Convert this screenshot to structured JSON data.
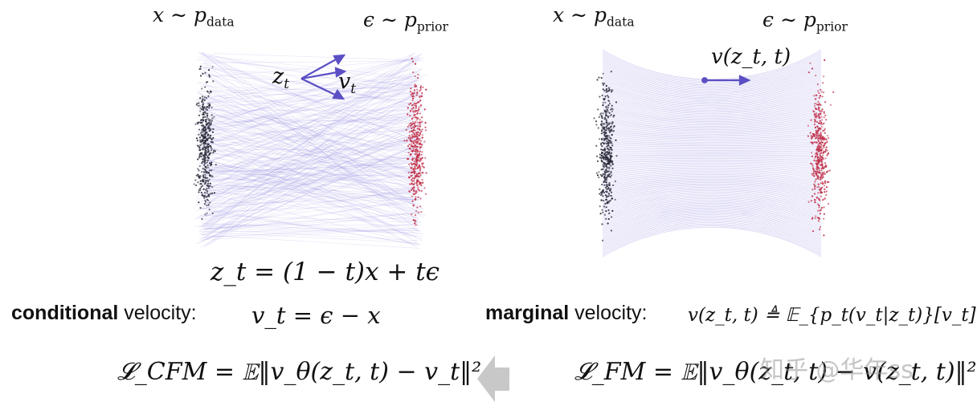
{
  "left_panel": {
    "x_label": "x ∼ p",
    "x_sub": "data",
    "eps_label": "ϵ ∼ p",
    "eps_sub": "prior",
    "zt_label": "z",
    "zt_sub": "t",
    "vt_label": "v",
    "vt_sub": "t",
    "equation": "z_t = (1 − t)x + tϵ"
  },
  "right_panel": {
    "x_label": "x ∼ p",
    "x_sub": "data",
    "eps_label": "ϵ ∼ p",
    "eps_sub": "prior",
    "v_label": "v(z_t, t)"
  },
  "conditional": {
    "bold": "conditional",
    "rest": " velocity:",
    "formula": "v_t = ϵ − x"
  },
  "marginal": {
    "bold": "marginal",
    "rest": " velocity:",
    "formula": "v(z_t, t) ≜ 𝔼_{p_t(v_t|z_t)}[v_t]"
  },
  "loss_cfm": "𝓛_CFM = 𝔼‖v_θ(z_t, t) − v_t‖²",
  "loss_fm": "𝓛_FM = 𝔼‖v_θ(z_t, t) − v(z_t, t)‖²",
  "watermark": "知乎 @华年ss",
  "colors": {
    "data_points": "#2a2a3a",
    "prior_points": "#c0304a",
    "paths": "#7a70d8",
    "arrow": "#5b4fc4",
    "big_arrow": "#c8c8c8"
  }
}
